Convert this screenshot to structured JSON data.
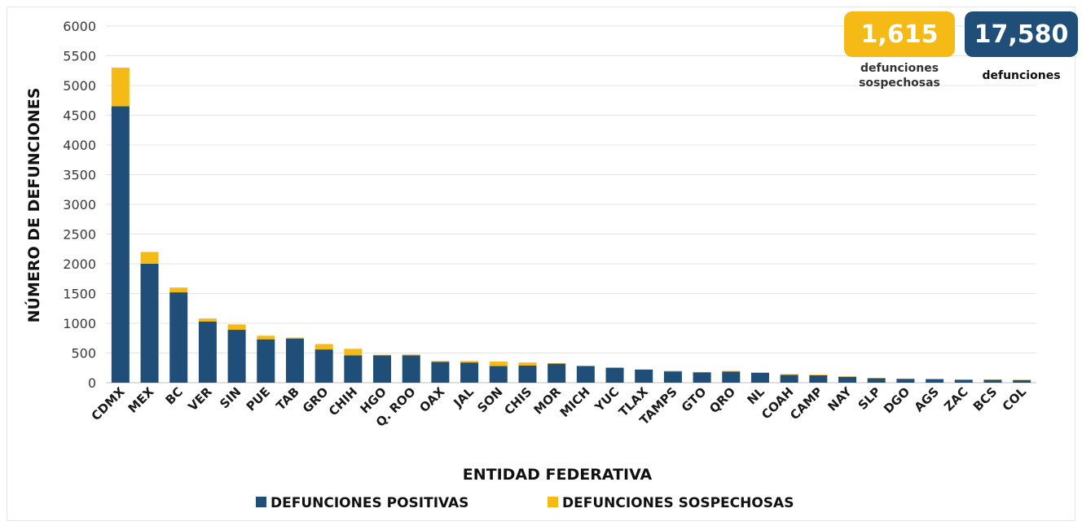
{
  "summary": {
    "suspected": {
      "value": "1,615",
      "label_line1": "defunciones",
      "label_line2": "sospechosas",
      "color": "#F5BA16"
    },
    "total": {
      "value": "17,580",
      "label": "defunciones",
      "color": "#1F4E79"
    }
  },
  "chart_data": {
    "type": "bar",
    "stacked": true,
    "xlabel": "ENTIDAD FEDERATIVA",
    "ylabel": "NÚMERO DE DEFUNCIONES",
    "ylim": [
      0,
      6000
    ],
    "yticks": [
      0,
      500,
      1000,
      1500,
      2000,
      2500,
      3000,
      3500,
      4000,
      4500,
      5000,
      5500,
      6000
    ],
    "grid": true,
    "legend_position": "bottom",
    "categories": [
      "CDMX",
      "MEX",
      "BC",
      "VER",
      "SIN",
      "PUE",
      "TAB",
      "GRO",
      "CHIH",
      "HGO",
      "Q. ROO",
      "OAX",
      "JAL",
      "SON",
      "CHIS",
      "MOR",
      "MICH",
      "YUC",
      "TLAX",
      "TAMPS",
      "GTO",
      "QRO",
      "NL",
      "COAH",
      "CAMP",
      "NAY",
      "SLP",
      "DGO",
      "AGS",
      "ZAC",
      "BCS",
      "COL"
    ],
    "series": [
      {
        "name": "DEFUNCIONES POSITIVAS",
        "color": "#1F4E79",
        "values": [
          4650,
          2000,
          1520,
          1030,
          890,
          730,
          740,
          560,
          460,
          460,
          460,
          350,
          340,
          280,
          290,
          320,
          280,
          250,
          220,
          190,
          175,
          185,
          165,
          130,
          125,
          100,
          75,
          65,
          60,
          50,
          50,
          45
        ]
      },
      {
        "name": "DEFUNCIONES SOSPECHOSAS",
        "color": "#F5BA16",
        "values": [
          650,
          200,
          80,
          50,
          90,
          60,
          20,
          90,
          110,
          10,
          15,
          15,
          25,
          75,
          50,
          10,
          5,
          10,
          5,
          10,
          5,
          15,
          10,
          15,
          10,
          5,
          5,
          5,
          5,
          0,
          5,
          5
        ]
      }
    ]
  }
}
